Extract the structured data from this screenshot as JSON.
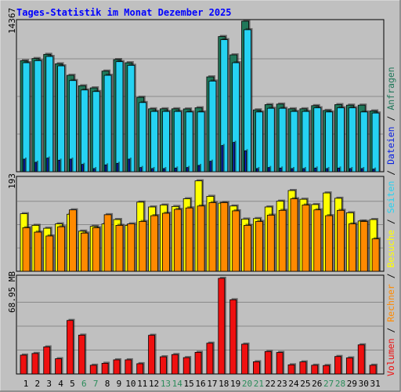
{
  "title": "Tages-Statistik im Monat Dezember 2025",
  "colors": {
    "background": "#c0c0c0",
    "title": "#0000ff",
    "anfragen": "#20785a",
    "dateien": "#26d2f2",
    "seiten": "#0a22e0",
    "besuche": "#ffff00",
    "rechner": "#ff8a00",
    "volumen": "#ef1010",
    "weekend_day": "#2b8c5a"
  },
  "side_legend": {
    "volumen": "Volumen",
    "rechner": "Rechner",
    "besuche": "Besuche",
    "seiten": "Seiten",
    "dateien": "Dateien",
    "anfragen": "Anfragen",
    "separator": " / "
  },
  "chart_data": [
    {
      "type": "bar",
      "name": "hits",
      "ymax_label": "14367",
      "ylim": [
        0,
        14367
      ],
      "categories": [
        "1",
        "2",
        "3",
        "4",
        "5",
        "6",
        "7",
        "8",
        "9",
        "10",
        "11",
        "12",
        "13",
        "14",
        "15",
        "16",
        "17",
        "18",
        "19",
        "20",
        "21",
        "22",
        "23",
        "24",
        "25",
        "26",
        "27",
        "28",
        "29",
        "30",
        "31"
      ],
      "weekend_days": [
        "6",
        "7",
        "13",
        "14",
        "20",
        "21",
        "27",
        "28"
      ],
      "grid": true,
      "series": [
        {
          "name": "Anfragen",
          "values": [
            10600,
            10800,
            11200,
            10300,
            9200,
            8200,
            8000,
            9600,
            10700,
            10400,
            7100,
            6000,
            6000,
            6000,
            5990,
            6100,
            9050,
            12900,
            11150,
            14367,
            5900,
            6400,
            6450,
            6000,
            6000,
            6300,
            5850,
            6400,
            6350,
            6350,
            5800
          ]
        },
        {
          "name": "Dateien",
          "values": [
            10400,
            10600,
            11000,
            10100,
            8700,
            7800,
            7650,
            9200,
            10500,
            10150,
            6600,
            5750,
            5750,
            5750,
            5700,
            5700,
            8650,
            12600,
            10400,
            13550,
            5700,
            6050,
            6050,
            5750,
            5750,
            6100,
            5700,
            6100,
            6100,
            5700,
            5600
          ]
        },
        {
          "name": "Seiten",
          "values": [
            1200,
            900,
            1300,
            1100,
            1200,
            700,
            300,
            650,
            800,
            1200,
            400,
            300,
            300,
            350,
            400,
            600,
            1000,
            2500,
            2800,
            2000,
            300,
            400,
            350,
            300,
            300,
            350,
            300,
            350,
            300,
            300,
            250
          ]
        }
      ]
    },
    {
      "type": "bar",
      "name": "visits",
      "ymax_label": "193",
      "ylim": [
        0,
        193
      ],
      "categories": [
        "1",
        "2",
        "3",
        "4",
        "5",
        "6",
        "7",
        "8",
        "9",
        "10",
        "11",
        "12",
        "13",
        "14",
        "15",
        "16",
        "17",
        "18",
        "19",
        "20",
        "21",
        "22",
        "23",
        "24",
        "25",
        "26",
        "27",
        "28",
        "29",
        "30",
        "31"
      ],
      "grid": true,
      "series": [
        {
          "name": "Besuche",
          "values": [
            119,
            95,
            89,
            98,
            118,
            83,
            93,
            98,
            107,
            95,
            143,
            133,
            137,
            134,
            150,
            187,
            155,
            141,
            135,
            108,
            109,
            133,
            145,
            167,
            149,
            138,
            162,
            151,
            121,
            104,
            107
          ]
        },
        {
          "name": "Rechner",
          "values": [
            90,
            81,
            73,
            92,
            127,
            79,
            90,
            117,
            95,
            98,
            103,
            115,
            120,
            128,
            131,
            135,
            142,
            142,
            125,
            95,
            103,
            116,
            126,
            150,
            137,
            127,
            115,
            126,
            98,
            103,
            67
          ]
        }
      ]
    },
    {
      "type": "bar",
      "name": "volume",
      "ymax_label": "68.95 MB",
      "ylim": [
        0,
        68.95
      ],
      "categories": [
        "1",
        "2",
        "3",
        "4",
        "5",
        "6",
        "7",
        "8",
        "9",
        "10",
        "11",
        "12",
        "13",
        "14",
        "15",
        "16",
        "17",
        "18",
        "19",
        "20",
        "21",
        "22",
        "23",
        "24",
        "25",
        "26",
        "27",
        "28",
        "29",
        "30",
        "31"
      ],
      "grid": true,
      "series": [
        {
          "name": "Volumen",
          "values": [
            13.6,
            14.8,
            19.5,
            11,
            38.6,
            28,
            6.3,
            7.7,
            10.2,
            10.2,
            7.4,
            27.9,
            12.4,
            14,
            11.8,
            15.6,
            22.2,
            68.95,
            53.5,
            21.5,
            8.8,
            16.2,
            15.5,
            6.6,
            8.7,
            6.3,
            6.1,
            12.6,
            11.6,
            21,
            6.3
          ]
        }
      ]
    }
  ]
}
